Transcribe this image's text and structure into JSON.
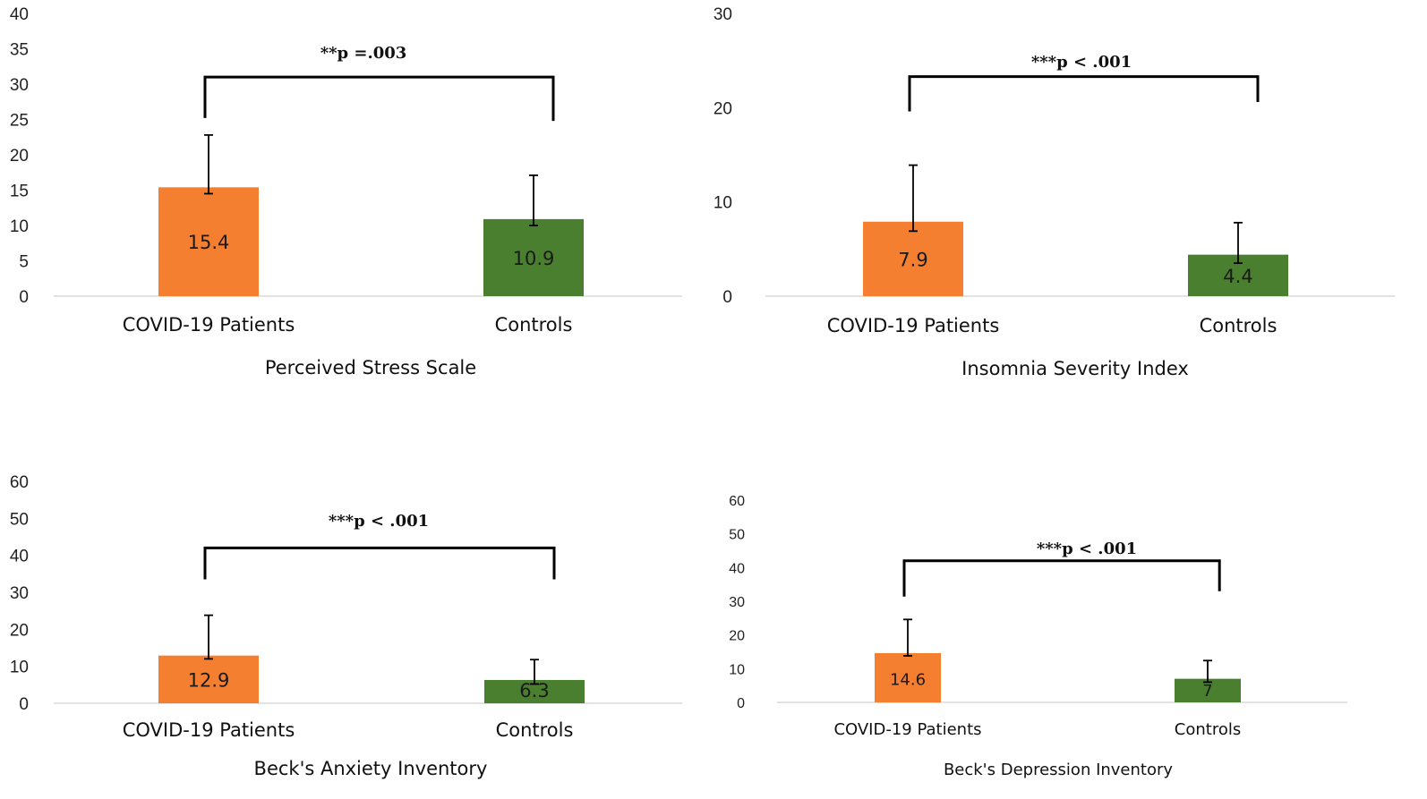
{
  "colors": {
    "patients": "#f47f30",
    "controls": "#4a7f2f",
    "axis": "#d9d9d9",
    "bracket": "#000000"
  },
  "chart_data": [
    {
      "type": "bar",
      "title": "",
      "xlabel": "Perceived Stress Scale",
      "ylabel": "",
      "categories": [
        "COVID-19 Patients",
        "Controls"
      ],
      "values": [
        15.4,
        10.9
      ],
      "value_labels": [
        "15.4",
        "10.9"
      ],
      "error_upper": [
        22.8,
        17.1
      ],
      "error_lower": [
        14.5,
        10.0
      ],
      "ylim": [
        0,
        40
      ],
      "yticks": [
        0,
        5,
        10,
        15,
        20,
        25,
        30,
        35,
        40
      ],
      "grid": false,
      "significance": {
        "label": "**p =.003",
        "bracket_y": 31,
        "left_end": 25.2,
        "right_end": 24.8
      }
    },
    {
      "type": "bar",
      "title": "",
      "xlabel": "Insomnia Severity Index",
      "ylabel": "",
      "categories": [
        "COVID-19 Patients",
        "Controls"
      ],
      "values": [
        7.9,
        4.4
      ],
      "value_labels": [
        "7.9",
        "4.4"
      ],
      "error_upper": [
        13.9,
        7.8
      ],
      "error_lower": [
        6.9,
        3.5
      ],
      "ylim": [
        0,
        30
      ],
      "yticks": [
        0,
        10,
        20,
        30
      ],
      "grid": false,
      "significance": {
        "label": "***p < .001",
        "bracket_y": 23.3,
        "left_end": 19.6,
        "right_end": 20.6
      }
    },
    {
      "type": "bar",
      "title": "",
      "xlabel": "Beck's Anxiety Inventory",
      "ylabel": "",
      "categories": [
        "COVID-19 Patients",
        "Controls"
      ],
      "values": [
        12.9,
        6.3
      ],
      "value_labels": [
        "12.9",
        "6.3"
      ],
      "error_upper": [
        23.8,
        11.8
      ],
      "error_lower": [
        12.0,
        5.2
      ],
      "ylim": [
        0,
        60
      ],
      "yticks": [
        0,
        10,
        20,
        30,
        40,
        50,
        60
      ],
      "grid": false,
      "significance": {
        "label": "***p < .001",
        "bracket_y": 42,
        "left_end": 33.5,
        "right_end": 33.5
      }
    },
    {
      "type": "bar",
      "title": "",
      "xlabel": "Beck's Depression Inventory",
      "ylabel": "",
      "categories": [
        "COVID-19 Patients",
        "Controls"
      ],
      "values": [
        14.6,
        7
      ],
      "value_labels": [
        "14.6",
        "7"
      ],
      "error_upper": [
        24.6,
        12.4
      ],
      "error_lower": [
        13.8,
        6.0
      ],
      "ylim": [
        0,
        60
      ],
      "yticks": [
        0,
        10,
        20,
        30,
        40,
        50,
        60
      ],
      "grid": false,
      "significance": {
        "label": "***p < .001",
        "bracket_y": 42,
        "left_end": 31.4,
        "right_end": 33.0
      }
    }
  ]
}
